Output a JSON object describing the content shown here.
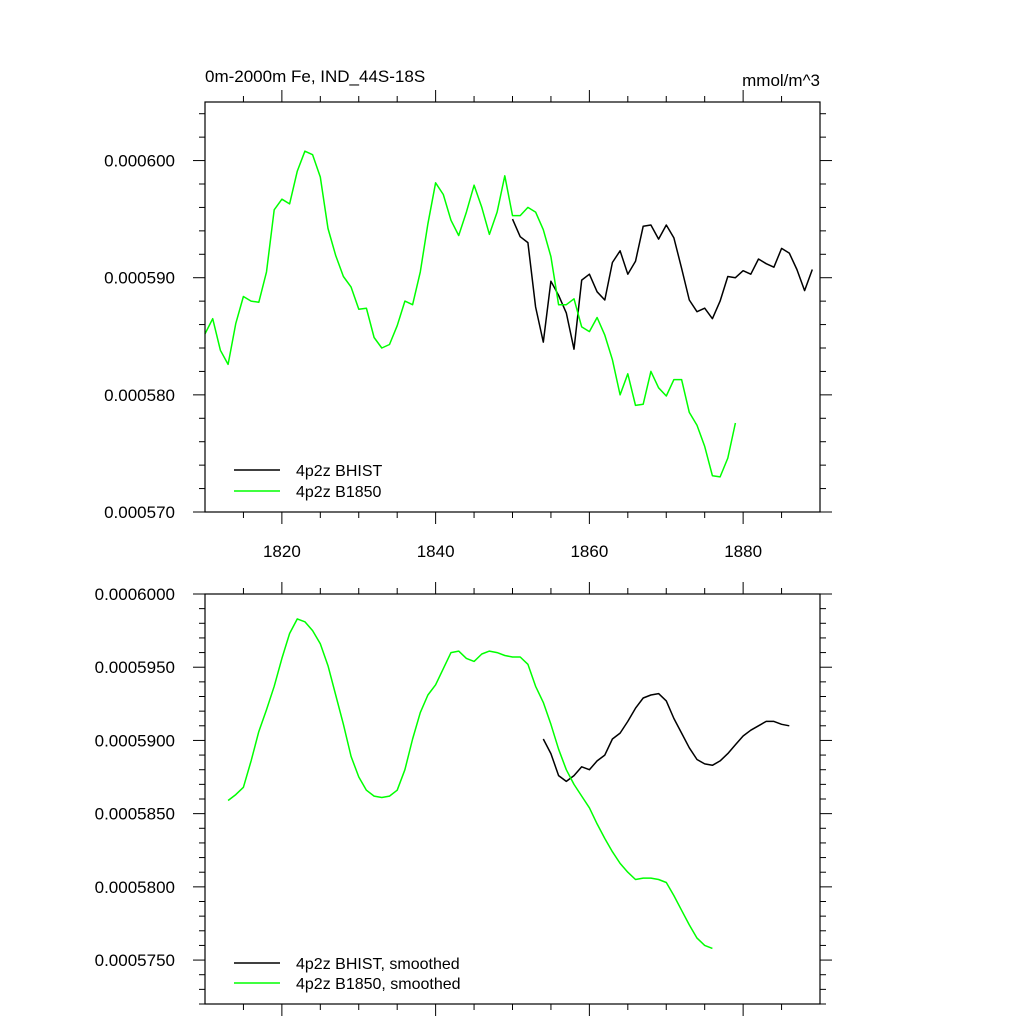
{
  "chart_data": [
    {
      "type": "line",
      "title": "0m-2000m Fe, IND_44S-18S",
      "units": "mmol/m^3",
      "xlabel": "",
      "ylabel": "",
      "xlim": [
        1810,
        1890
      ],
      "ylim": [
        0.00057,
        0.000605
      ],
      "xticks": [
        1820,
        1840,
        1860,
        1880
      ],
      "xtick_labels": [
        "1820",
        "1840",
        "1860",
        "1880"
      ],
      "yticks": [
        0.00057,
        0.00058,
        0.00059,
        0.0006
      ],
      "ytick_labels": [
        "0.000570",
        "0.000580",
        "0.000590",
        "0.000600"
      ],
      "grid": false,
      "legend_position": "bottom-left",
      "series": [
        {
          "name": "4p2z BHIST",
          "color": "#000000",
          "x": [
            1850,
            1851,
            1852,
            1853,
            1854,
            1855,
            1856,
            1857,
            1858,
            1859,
            1860,
            1861,
            1862,
            1863,
            1864,
            1865,
            1866,
            1867,
            1868,
            1869,
            1870,
            1871,
            1872,
            1873,
            1874,
            1875,
            1876,
            1877,
            1878,
            1879,
            1880,
            1881,
            1882,
            1883,
            1884,
            1885,
            1886,
            1887,
            1888,
            1889
          ],
          "y": [
            0.000595,
            0.0005935,
            0.000593,
            0.0005875,
            0.0005845,
            0.0005897,
            0.0005885,
            0.000587,
            0.0005839,
            0.0005898,
            0.0005903,
            0.0005888,
            0.0005881,
            0.0005913,
            0.0005923,
            0.0005903,
            0.0005914,
            0.0005944,
            0.0005945,
            0.0005933,
            0.0005945,
            0.0005934,
            0.0005908,
            0.0005881,
            0.0005871,
            0.0005874,
            0.0005865,
            0.000588,
            0.0005901,
            0.00059,
            0.0005906,
            0.0005903,
            0.0005916,
            0.0005912,
            0.0005909,
            0.0005925,
            0.0005921,
            0.0005907,
            0.0005889,
            0.0005907
          ]
        },
        {
          "name": "4p2z B1850",
          "color": "#00ff00",
          "x": [
            1810,
            1811,
            1812,
            1813,
            1814,
            1815,
            1816,
            1817,
            1818,
            1819,
            1820,
            1821,
            1822,
            1823,
            1824,
            1825,
            1826,
            1827,
            1828,
            1829,
            1830,
            1831,
            1832,
            1833,
            1834,
            1835,
            1836,
            1837,
            1838,
            1839,
            1840,
            1841,
            1842,
            1843,
            1844,
            1845,
            1846,
            1847,
            1848,
            1849,
            1850,
            1851,
            1852,
            1853,
            1854,
            1855,
            1856,
            1857,
            1858,
            1859,
            1860,
            1861,
            1862,
            1863,
            1864,
            1865,
            1866,
            1867,
            1868,
            1869,
            1870,
            1871,
            1872,
            1873,
            1874,
            1875,
            1876,
            1877,
            1878,
            1879
          ],
          "y": [
            0.0005852,
            0.0005865,
            0.0005838,
            0.0005826,
            0.0005861,
            0.0005884,
            0.000588,
            0.0005879,
            0.0005905,
            0.0005958,
            0.0005967,
            0.0005963,
            0.0005991,
            0.0006008,
            0.0006005,
            0.0005986,
            0.0005942,
            0.0005919,
            0.0005901,
            0.0005892,
            0.0005873,
            0.0005874,
            0.0005849,
            0.000584,
            0.0005843,
            0.0005859,
            0.000588,
            0.0005877,
            0.0005905,
            0.0005946,
            0.0005981,
            0.0005971,
            0.0005949,
            0.0005936,
            0.0005956,
            0.0005979,
            0.000596,
            0.0005937,
            0.0005956,
            0.0005987,
            0.0005953,
            0.0005953,
            0.000596,
            0.0005956,
            0.0005941,
            0.0005918,
            0.0005877,
            0.0005877,
            0.0005882,
            0.0005858,
            0.0005854,
            0.0005866,
            0.0005851,
            0.000583,
            0.00058,
            0.0005818,
            0.0005791,
            0.0005792,
            0.000582,
            0.0005806,
            0.0005799,
            0.0005813,
            0.0005813,
            0.0005785,
            0.0005774,
            0.0005756,
            0.0005731,
            0.000573,
            0.0005746,
            0.0005776
          ]
        }
      ]
    },
    {
      "type": "line",
      "title": "",
      "xlabel": "",
      "ylabel": "",
      "xlim": [
        1810,
        1890
      ],
      "ylim": [
        0.000572,
        0.0006
      ],
      "xticks": [
        1820,
        1840,
        1860,
        1880
      ],
      "xtick_labels": [
        "",
        "",
        "",
        ""
      ],
      "yticks": [
        0.000575,
        0.00058,
        0.000585,
        0.00059,
        0.000595,
        0.0006
      ],
      "ytick_labels": [
        "0.0005750",
        "0.0005800",
        "0.0005850",
        "0.0005900",
        "0.0005950",
        "0.0006000"
      ],
      "grid": false,
      "legend_position": "bottom-left",
      "series": [
        {
          "name": "4p2z BHIST, smoothed",
          "color": "#000000",
          "x": [
            1854,
            1855,
            1856,
            1857,
            1858,
            1859,
            1860,
            1861,
            1862,
            1863,
            1864,
            1865,
            1866,
            1867,
            1868,
            1869,
            1870,
            1871,
            1872,
            1873,
            1874,
            1875,
            1876,
            1877,
            1878,
            1879,
            1880,
            1881,
            1882,
            1883,
            1884,
            1885,
            1886
          ],
          "y": [
            0.0005901,
            0.0005891,
            0.0005876,
            0.0005872,
            0.0005876,
            0.0005882,
            0.000588,
            0.0005886,
            0.000589,
            0.0005901,
            0.0005905,
            0.0005913,
            0.0005922,
            0.0005929,
            0.0005931,
            0.0005932,
            0.0005927,
            0.0005915,
            0.0005905,
            0.0005895,
            0.0005887,
            0.0005884,
            0.0005883,
            0.0005886,
            0.0005891,
            0.0005897,
            0.0005903,
            0.0005907,
            0.000591,
            0.0005913,
            0.0005913,
            0.0005911,
            0.000591
          ]
        },
        {
          "name": "4p2z B1850, smoothed",
          "color": "#00ff00",
          "x": [
            1813,
            1814,
            1815,
            1816,
            1817,
            1818,
            1819,
            1820,
            1821,
            1822,
            1823,
            1824,
            1825,
            1826,
            1827,
            1828,
            1829,
            1830,
            1831,
            1832,
            1833,
            1834,
            1835,
            1836,
            1837,
            1838,
            1839,
            1840,
            1841,
            1842,
            1843,
            1844,
            1845,
            1846,
            1847,
            1848,
            1849,
            1850,
            1851,
            1852,
            1853,
            1854,
            1855,
            1856,
            1857,
            1858,
            1859,
            1860,
            1861,
            1862,
            1863,
            1864,
            1865,
            1866,
            1867,
            1868,
            1869,
            1870,
            1871,
            1872,
            1873,
            1874,
            1875,
            1876
          ],
          "y": [
            0.0005859,
            0.0005863,
            0.0005868,
            0.0005886,
            0.0005906,
            0.0005921,
            0.0005937,
            0.0005956,
            0.0005973,
            0.0005983,
            0.0005981,
            0.0005975,
            0.0005966,
            0.0005951,
            0.0005931,
            0.0005911,
            0.0005889,
            0.0005875,
            0.0005866,
            0.0005862,
            0.0005861,
            0.0005862,
            0.0005866,
            0.000588,
            0.0005901,
            0.0005919,
            0.0005931,
            0.0005938,
            0.0005949,
            0.000596,
            0.0005961,
            0.0005956,
            0.0005954,
            0.0005959,
            0.0005961,
            0.000596,
            0.0005958,
            0.0005957,
            0.0005957,
            0.0005952,
            0.0005937,
            0.0005926,
            0.0005911,
            0.0005894,
            0.000588,
            0.000587,
            0.0005862,
            0.0005854,
            0.0005843,
            0.0005833,
            0.0005824,
            0.0005816,
            0.000581,
            0.0005805,
            0.0005806,
            0.0005806,
            0.0005805,
            0.0005803,
            0.0005794,
            0.0005784,
            0.0005774,
            0.0005765,
            0.000576,
            0.0005758
          ]
        }
      ]
    }
  ]
}
